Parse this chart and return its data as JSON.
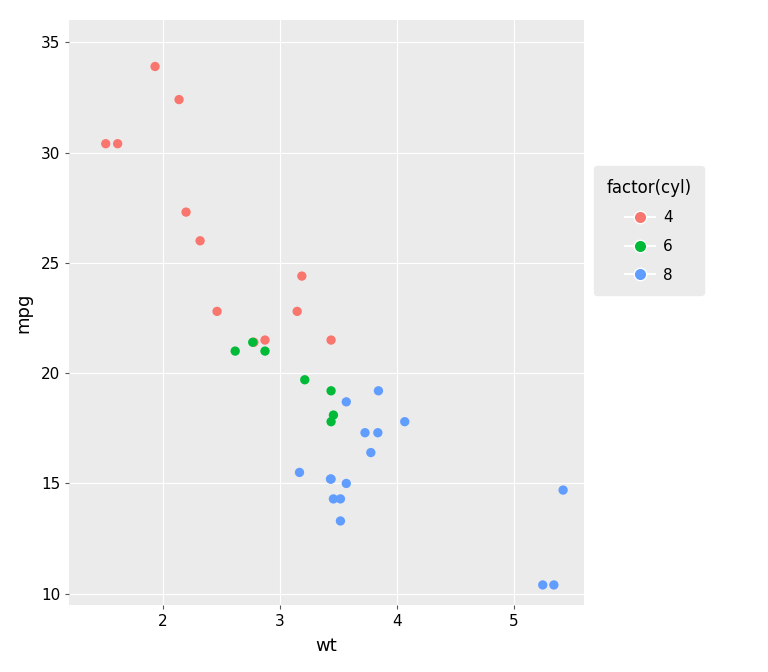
{
  "title": "",
  "xlabel": "wt",
  "ylabel": "mpg",
  "legend_title": "factor(cyl)",
  "panel_background": "#EBEBEB",
  "legend_bg": "#EBEBEB",
  "outer_bg": "#FFFFFF",
  "grid_color": "#FFFFFF",
  "colors": {
    "4": "#F8766D",
    "6": "#00BA38",
    "8": "#619CFF"
  },
  "points": [
    {
      "wt": 1.513,
      "mpg": 30.4,
      "cyl": 4
    },
    {
      "wt": 1.615,
      "mpg": 30.4,
      "cyl": 4
    },
    {
      "wt": 1.935,
      "mpg": 33.9,
      "cyl": 4
    },
    {
      "wt": 2.14,
      "mpg": 32.4,
      "cyl": 4
    },
    {
      "wt": 2.2,
      "mpg": 27.3,
      "cyl": 4
    },
    {
      "wt": 2.32,
      "mpg": 26.0,
      "cyl": 4
    },
    {
      "wt": 2.465,
      "mpg": 22.8,
      "cyl": 4
    },
    {
      "wt": 2.78,
      "mpg": 21.4,
      "cyl": 4
    },
    {
      "wt": 2.875,
      "mpg": 21.5,
      "cyl": 4
    },
    {
      "wt": 3.19,
      "mpg": 24.4,
      "cyl": 4
    },
    {
      "wt": 3.15,
      "mpg": 22.8,
      "cyl": 4
    },
    {
      "wt": 3.44,
      "mpg": 21.5,
      "cyl": 4
    },
    {
      "wt": 2.62,
      "mpg": 21.0,
      "cyl": 6
    },
    {
      "wt": 2.875,
      "mpg": 21.0,
      "cyl": 6
    },
    {
      "wt": 2.77,
      "mpg": 21.4,
      "cyl": 6
    },
    {
      "wt": 3.215,
      "mpg": 19.7,
      "cyl": 6
    },
    {
      "wt": 3.46,
      "mpg": 18.1,
      "cyl": 6
    },
    {
      "wt": 3.44,
      "mpg": 19.2,
      "cyl": 6
    },
    {
      "wt": 3.44,
      "mpg": 17.8,
      "cyl": 6
    },
    {
      "wt": 3.17,
      "mpg": 15.5,
      "cyl": 8
    },
    {
      "wt": 3.435,
      "mpg": 15.2,
      "cyl": 8
    },
    {
      "wt": 3.46,
      "mpg": 14.3,
      "cyl": 8
    },
    {
      "wt": 3.44,
      "mpg": 15.2,
      "cyl": 8
    },
    {
      "wt": 3.52,
      "mpg": 13.3,
      "cyl": 8
    },
    {
      "wt": 3.57,
      "mpg": 15.0,
      "cyl": 8
    },
    {
      "wt": 3.73,
      "mpg": 17.3,
      "cyl": 8
    },
    {
      "wt": 3.78,
      "mpg": 16.4,
      "cyl": 8
    },
    {
      "wt": 3.84,
      "mpg": 17.3,
      "cyl": 8
    },
    {
      "wt": 3.845,
      "mpg": 19.2,
      "cyl": 8
    },
    {
      "wt": 4.07,
      "mpg": 17.8,
      "cyl": 8
    },
    {
      "wt": 5.25,
      "mpg": 10.4,
      "cyl": 8
    },
    {
      "wt": 5.345,
      "mpg": 10.4,
      "cyl": 8
    },
    {
      "wt": 5.424,
      "mpg": 14.7,
      "cyl": 8
    },
    {
      "wt": 3.57,
      "mpg": 18.7,
      "cyl": 8
    },
    {
      "wt": 3.52,
      "mpg": 14.3,
      "cyl": 8
    }
  ],
  "xlim": [
    1.2,
    5.6
  ],
  "ylim": [
    9.5,
    36.0
  ],
  "xticks": [
    2,
    3,
    4,
    5
  ],
  "yticks": [
    10,
    15,
    20,
    25,
    30,
    35
  ],
  "marker_size": 45,
  "legend_marker_size": 9,
  "axis_labelsize": 13,
  "tick_labelsize": 11,
  "legend_fontsize": 11,
  "legend_title_fontsize": 12
}
